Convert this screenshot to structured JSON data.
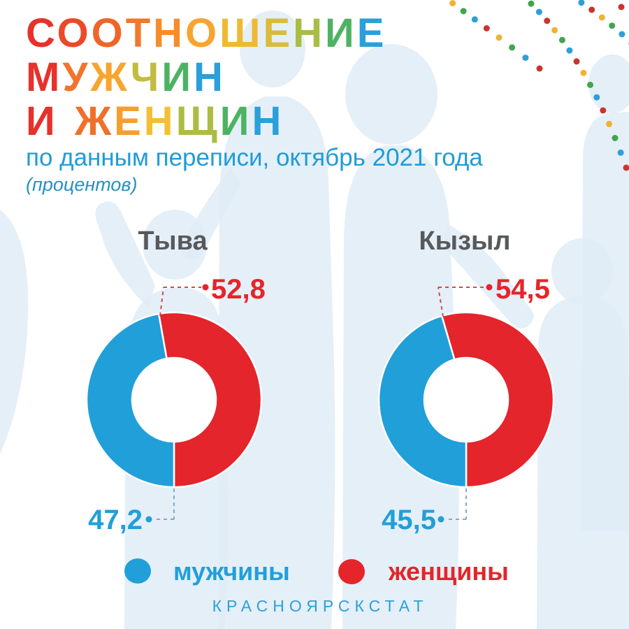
{
  "header": {
    "lines": [
      {
        "letters": [
          [
            "С",
            "#E7312A"
          ],
          [
            "О",
            "#EC4928"
          ],
          [
            "О",
            "#F0642A"
          ],
          [
            "Т",
            "#F3782B"
          ],
          [
            "Н",
            "#F68D2D"
          ],
          [
            "О",
            "#F8A430"
          ],
          [
            "Ш",
            "#EEBA33"
          ],
          [
            "Е",
            "#D9BC3A"
          ],
          [
            "Н",
            "#A9BC44"
          ],
          [
            "И",
            "#4FB263"
          ],
          [
            "Е",
            "#2B9FD9"
          ]
        ]
      },
      {
        "letters": [
          [
            "М",
            "#E7312A"
          ],
          [
            "У",
            "#F1752B"
          ],
          [
            "Ж",
            "#F7A52E"
          ],
          [
            "Ч",
            "#C2BD3F"
          ],
          [
            "И",
            "#4DB363"
          ],
          [
            "Н",
            "#2B9FD9"
          ]
        ]
      },
      {
        "letters": [
          [
            "И",
            "#E7312A"
          ],
          [
            " ",
            ""
          ],
          [
            "Ж",
            "#F0702A"
          ],
          [
            "Е",
            "#F69E2E"
          ],
          [
            "Н",
            "#F4C033"
          ],
          [
            "Щ",
            "#ADBC43"
          ],
          [
            "И",
            "#4DB363"
          ],
          [
            "Н",
            "#2B9FD9"
          ]
        ]
      }
    ],
    "title_text": "СООТНОШЕНИЕ МУЖЧИН И ЖЕНЩИН",
    "subtitle": "по данным переписи, октябрь 2021 года",
    "note": "(процентов)"
  },
  "chart_data": [
    {
      "type": "pie",
      "donut": true,
      "title": "Тыва",
      "categories": [
        "мужчины",
        "женщины"
      ],
      "values": [
        47.2,
        52.8
      ],
      "value_labels": [
        "47,2",
        "52,8"
      ],
      "colors": [
        "#219FD9",
        "#E4252B"
      ],
      "unit": "percent",
      "legend_position": "bottom"
    },
    {
      "type": "pie",
      "donut": true,
      "title": "Кызыл",
      "categories": [
        "мужчины",
        "женщины"
      ],
      "values": [
        45.5,
        54.5
      ],
      "value_labels": [
        "45,5",
        "54,5"
      ],
      "colors": [
        "#219FD9",
        "#E4252B"
      ],
      "unit": "percent",
      "legend_position": "bottom"
    }
  ],
  "legend": {
    "items": [
      {
        "label": "мужчины",
        "color": "#219FD9"
      },
      {
        "label": "женщины",
        "color": "#E4252B"
      }
    ]
  },
  "footer": {
    "text": "КРАСНОЯРСКСТАТ",
    "color": "#2E9FD9"
  },
  "colors": {
    "background": "#FFFFFF",
    "male": "#219FD9",
    "female": "#E4252B",
    "subtitle": "#1F9CD8",
    "note": "#2791BE",
    "city_label": "#58595B",
    "footer": "#2E9FD9",
    "callout_red_dash": "#CE4B47",
    "callout_blue_dash": "#86A9BE",
    "silhouette": "#DFECF7",
    "dot_strand_palette": [
      "#C93430",
      "#F0B232",
      "#3FA64B",
      "#2E9FD8"
    ]
  }
}
